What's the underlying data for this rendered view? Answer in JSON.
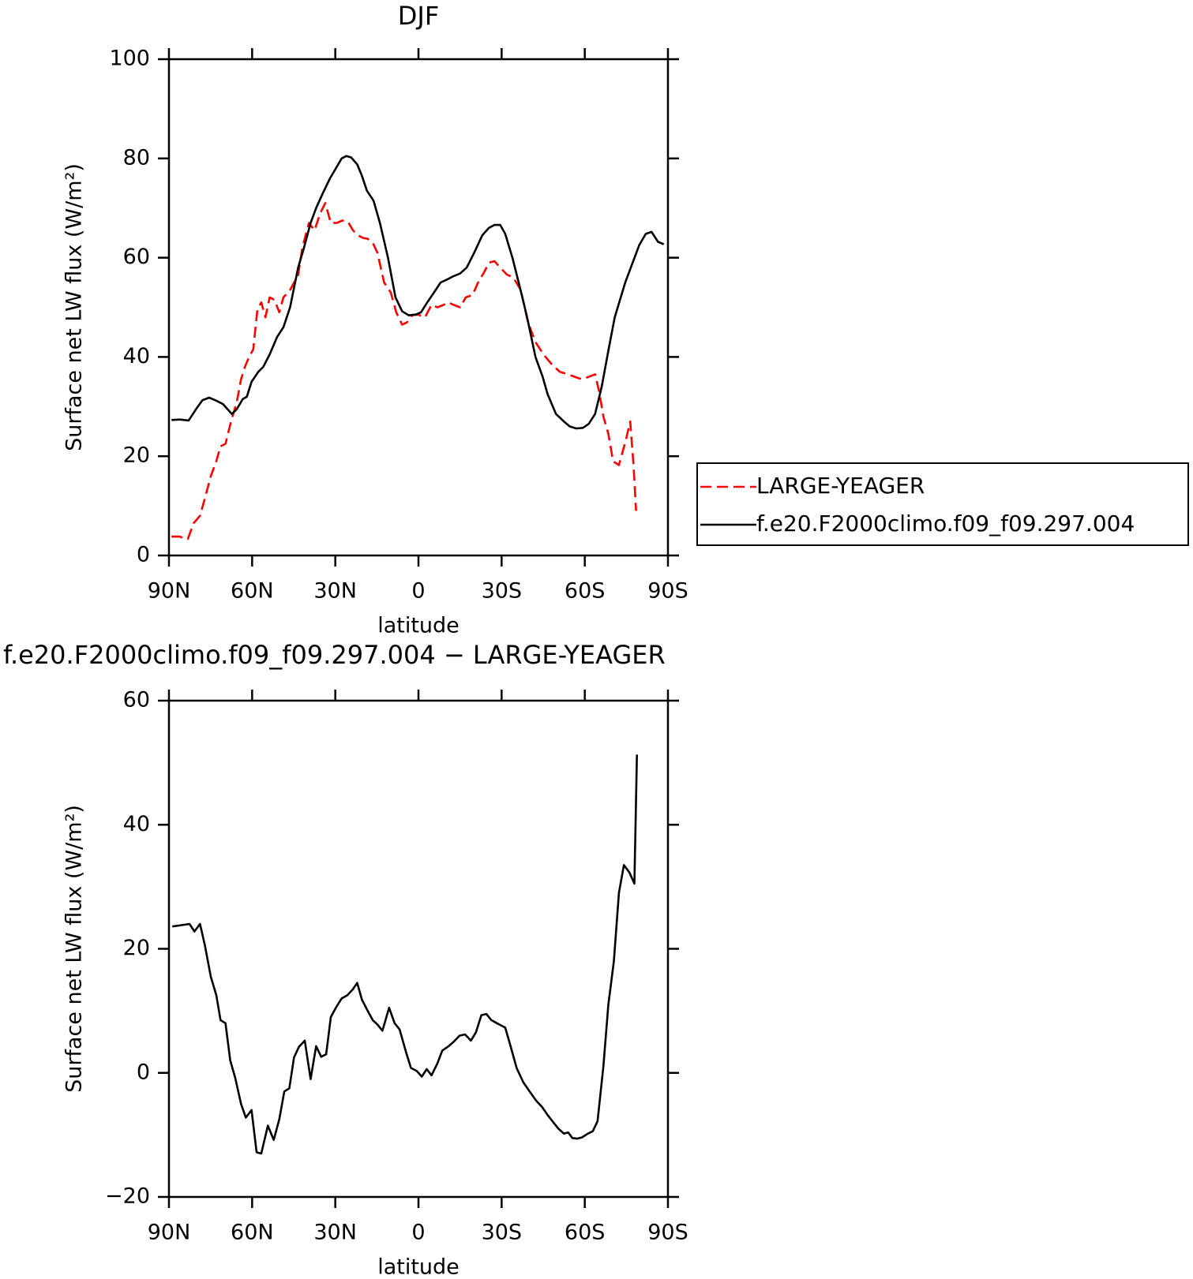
{
  "chart_data": [
    {
      "type": "line",
      "title": "DJF",
      "xlabel": "latitude",
      "ylabel": "Surface net LW flux (W/m²)",
      "xlim": [
        90,
        -90
      ],
      "xticks": [
        {
          "value": 90,
          "label": "90N"
        },
        {
          "value": 60,
          "label": "60N"
        },
        {
          "value": 30,
          "label": "30N"
        },
        0,
        {
          "value": -30,
          "label": "30S"
        },
        {
          "value": -60,
          "label": "60S"
        },
        {
          "value": -90,
          "label": "90S"
        }
      ],
      "ylim": [
        0,
        100
      ],
      "yticks": [
        0,
        20,
        40,
        60,
        80,
        100
      ],
      "legend": "right",
      "series": [
        {
          "name": "LARGE-YEAGER",
          "color": "#ff0000",
          "dash": "dashed",
          "x": [
            89.1,
            86.2,
            83.2,
            81.1,
            78.8,
            77.3,
            74.9,
            72.9,
            71.4,
            69.6,
            67.6,
            65.5,
            64.0,
            62.6,
            61.1,
            59.6,
            58.1,
            56.7,
            55.2,
            53.7,
            51.9,
            50.2,
            48.7,
            46.3,
            43.4,
            41.9,
            39.5,
            37.5,
            35.4,
            33.6,
            31.6,
            29.5,
            27.4,
            25.4,
            23.6,
            21.8,
            20.1,
            18.3,
            16.5,
            14.8,
            12.4,
            10.0,
            8.0,
            5.9,
            4.1,
            2.1,
            0,
            -2.4,
            -4.7,
            -6.8,
            -9.1,
            -10.6,
            -12.7,
            -15.0,
            -17.1,
            -19.5,
            -21.5,
            -23.6,
            -25.4,
            -27.4,
            -29.5,
            -31.9,
            -34.2,
            -36.9,
            -39.5,
            -42.2,
            -45.1,
            -48.1,
            -51.0,
            -54.0,
            -56.4,
            -59.0,
            -61.4,
            -63.7,
            -65.2,
            -66.7,
            -68.5,
            -70.2,
            -72.3,
            -74.7,
            -76.4,
            -77.6,
            -78.5
          ],
          "values": [
            3.8,
            3.8,
            3.3,
            6.5,
            8,
            11,
            16,
            19,
            22,
            22.5,
            27,
            31,
            35.5,
            38,
            40,
            41.5,
            49.5,
            51,
            48,
            52,
            51.5,
            49,
            52,
            53.5,
            56.5,
            62,
            67,
            65.5,
            69,
            71,
            67,
            67,
            67.5,
            67.2,
            65.5,
            64.5,
            64,
            63.8,
            63,
            61,
            55,
            53,
            49,
            46.5,
            47,
            48.5,
            48.5,
            48,
            50.5,
            50,
            50.5,
            51,
            50.5,
            50,
            52,
            52.5,
            55,
            57,
            59,
            59.3,
            58,
            56.6,
            56,
            53.5,
            47,
            43,
            40.5,
            38.5,
            37,
            36.5,
            36,
            35.5,
            36,
            36.5,
            33,
            28,
            24.5,
            19,
            18.2,
            23,
            27,
            18,
            9
          ]
        },
        {
          "name": "f.e20.F2000climo.f09_f09.297.004",
          "color": "#000000",
          "dash": "solid",
          "x": [
            89.1,
            86.1,
            82.9,
            80.2,
            77.9,
            75.5,
            72.9,
            70.5,
            67.3,
            65.5,
            63.4,
            61.9,
            60.2,
            57.8,
            56.0,
            53.7,
            51.0,
            48.7,
            46.3,
            43.4,
            41.3,
            38.9,
            36.9,
            34.5,
            31.9,
            29.8,
            27.7,
            26.0,
            24.3,
            22.1,
            20.4,
            18.6,
            16.2,
            13.9,
            11.0,
            8.3,
            5.9,
            3.5,
            1.2,
            -0.9,
            -3.2,
            -5.6,
            -8.0,
            -10.3,
            -12.7,
            -15.0,
            -17.4,
            -20.1,
            -23.0,
            -25.4,
            -27.4,
            -29.5,
            -31.3,
            -33.9,
            -36.6,
            -39.2,
            -42.2,
            -44.8,
            -46.6,
            -49.6,
            -52.5,
            -54.6,
            -56.9,
            -59.3,
            -61.4,
            -63.7,
            -66.1,
            -68.4,
            -70.8,
            -74.6,
            -77.6,
            -79.6,
            -82.0,
            -84.1,
            -86.4,
            -88.5
          ],
          "values": [
            27.3,
            27.4,
            27.2,
            29.5,
            31.3,
            31.8,
            31.2,
            30.5,
            28.5,
            29.5,
            31.5,
            32,
            35,
            37,
            38,
            40.5,
            44,
            46,
            50,
            58,
            62,
            67,
            70,
            73,
            76,
            78,
            80,
            80.5,
            80.2,
            78.8,
            76.5,
            73.5,
            71.5,
            67,
            60,
            52,
            49.2,
            48.4,
            48.5,
            49,
            51,
            53,
            55,
            55.6,
            56.3,
            56.8,
            58,
            61,
            64.5,
            66,
            66.6,
            66.6,
            64.8,
            60,
            54,
            48,
            40,
            36,
            32.5,
            28.5,
            27,
            26,
            25.6,
            25.7,
            26.5,
            28.5,
            34,
            41,
            48,
            55,
            59.5,
            62.5,
            64.8,
            65.2,
            63.2,
            62.7
          ]
        }
      ]
    },
    {
      "type": "line",
      "title": "f.e20.F2000climo.f09_f09.297.004 − LARGE-YEAGER",
      "xlabel": "latitude",
      "ylabel": "Surface net LW flux (W/m²)",
      "xlim": [
        90,
        -90
      ],
      "xticks": [
        {
          "value": 90,
          "label": "90N"
        },
        {
          "value": 60,
          "label": "60N"
        },
        {
          "value": 30,
          "label": "30N"
        },
        0,
        {
          "value": -30,
          "label": "30S"
        },
        {
          "value": -60,
          "label": "60S"
        },
        {
          "value": -90,
          "label": "90S"
        }
      ],
      "ylim": [
        -20,
        60
      ],
      "yticks": [
        {
          "value": -20,
          "label": "−20"
        },
        0,
        20,
        40,
        60
      ],
      "series": [
        {
          "color": "#000000",
          "dash": "solid",
          "x": [
            88.8,
            85.6,
            82.6,
            80.8,
            78.8,
            77.0,
            74.9,
            72.9,
            71.4,
            69.6,
            67.9,
            66.1,
            64.0,
            62.3,
            60.2,
            58.4,
            56.7,
            54.3,
            52.2,
            50.2,
            48.4,
            46.6,
            44.9,
            43.1,
            41.0,
            38.9,
            36.9,
            35.1,
            33.3,
            31.6,
            29.8,
            27.7,
            25.7,
            23.6,
            22.1,
            20.4,
            18.3,
            16.5,
            14.8,
            13.0,
            10.6,
            8.6,
            6.8,
            4.4,
            2.7,
            0.6,
            -1.2,
            -3.0,
            -4.7,
            -6.8,
            -8.6,
            -10.6,
            -12.7,
            -14.8,
            -16.8,
            -18.9,
            -20.7,
            -22.7,
            -24.5,
            -26.3,
            -28.3,
            -31.3,
            -33.3,
            -35.4,
            -37.8,
            -40.1,
            -42.5,
            -44.6,
            -46.6,
            -48.7,
            -50.5,
            -52.5,
            -54.0,
            -55.5,
            -57.2,
            -59.0,
            -61.1,
            -62.9,
            -64.6,
            -66.7,
            -68.5,
            -70.5,
            -72.3,
            -74.1,
            -76.1,
            -77.9,
            -78.8
          ],
          "values": [
            23.6,
            23.8,
            24,
            22.8,
            24,
            20.5,
            15.5,
            12.5,
            8.5,
            8,
            2,
            -0.8,
            -5,
            -7.2,
            -6,
            -12.8,
            -13,
            -8.5,
            -10.8,
            -7.5,
            -3,
            -2.5,
            2.5,
            4.2,
            5.2,
            -1,
            4.3,
            2.6,
            3,
            9,
            10.5,
            12,
            12.5,
            13.5,
            14.5,
            11.8,
            10,
            8.5,
            7.8,
            6.8,
            10.5,
            8,
            7,
            3.2,
            0.8,
            0.3,
            -0.6,
            0.6,
            -0.4,
            1.5,
            3.6,
            4.2,
            5,
            6,
            6.2,
            5.2,
            6.5,
            9.3,
            9.5,
            8.5,
            8,
            7.3,
            4.2,
            0.8,
            -1.5,
            -3,
            -4.5,
            -5.5,
            -6.8,
            -8,
            -9,
            -9.8,
            -9.6,
            -10.5,
            -10.6,
            -10.4,
            -9.8,
            -9.4,
            -7.8,
            1,
            11,
            18,
            29,
            33.5,
            32.3,
            30.5,
            51.3
          ]
        }
      ]
    }
  ]
}
